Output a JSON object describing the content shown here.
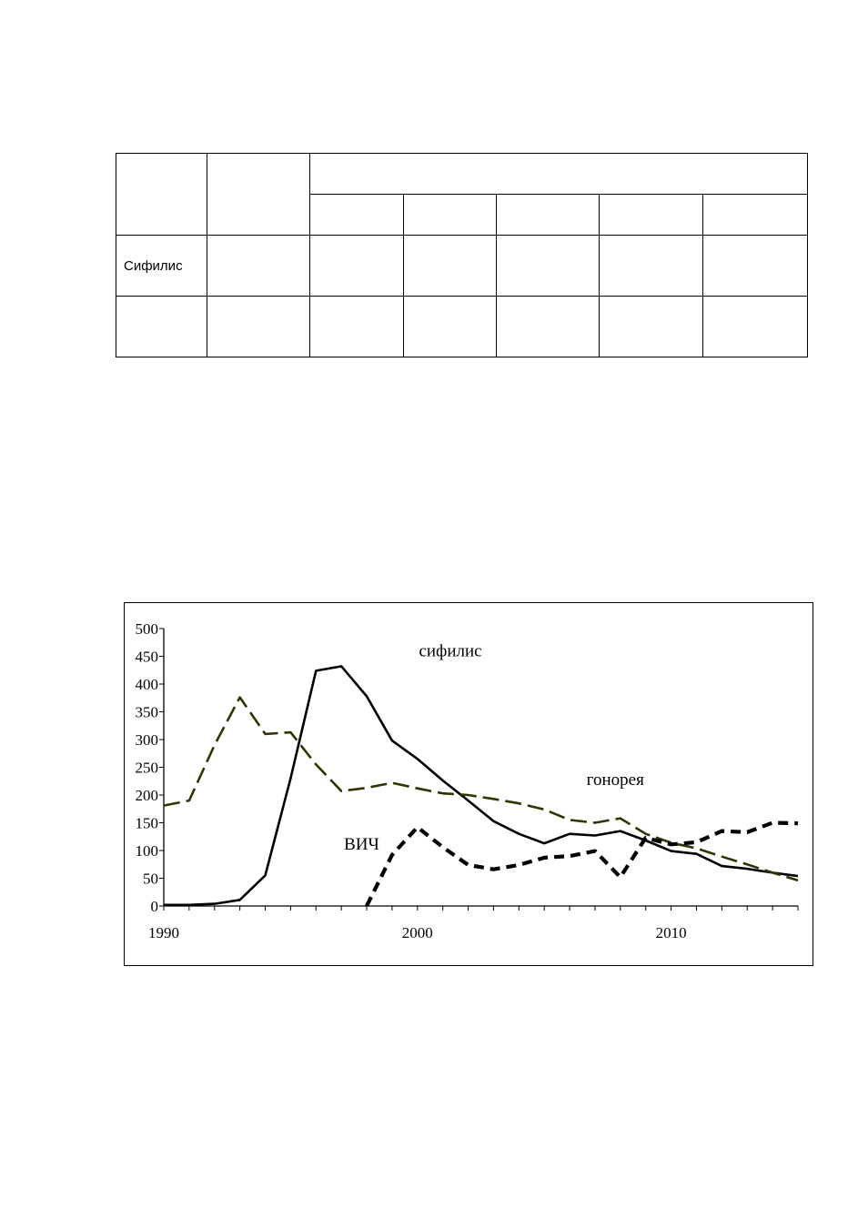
{
  "table": {
    "rows": [
      [
        "",
        "",
        "",
        "",
        "",
        "",
        ""
      ],
      [
        "Сифилис",
        "",
        "",
        "",
        "",
        "",
        ""
      ],
      [
        "",
        "",
        "",
        "",
        "",
        "",
        ""
      ]
    ]
  },
  "chart_data": {
    "type": "line",
    "xlim": [
      1990,
      2015
    ],
    "ylim": [
      0,
      500
    ],
    "yticks": [
      "0",
      "50",
      "100",
      "150",
      "200",
      "250",
      "300",
      "350",
      "400",
      "450",
      "500"
    ],
    "xticks": [
      "1990",
      "2000",
      "2010"
    ],
    "grid": false,
    "legend": "none",
    "annotations": [
      "сифилис",
      "гонорея",
      "ВИЧ"
    ],
    "series": [
      {
        "name": "сифилис",
        "style": "solid",
        "color": "#000000",
        "x": [
          1990,
          1991,
          1992,
          1993,
          1994,
          1995,
          1996,
          1997,
          1998,
          1999,
          2000,
          2001,
          2002,
          2003,
          2004,
          2005,
          2006,
          2007,
          2008,
          2009,
          2010,
          2011,
          2012,
          2013,
          2014,
          2015
        ],
        "values": [
          2,
          2,
          4,
          11,
          55,
          230,
          424,
          432,
          378,
          298,
          265,
          226,
          190,
          153,
          130,
          113,
          130,
          127,
          135,
          118,
          99,
          94,
          72,
          67,
          60,
          54
        ]
      },
      {
        "name": "гонорея",
        "style": "dashed",
        "color": "#333300",
        "x": [
          1990,
          1991,
          1992,
          1993,
          1994,
          1995,
          1996,
          1997,
          1998,
          1999,
          2000,
          2001,
          2002,
          2003,
          2004,
          2005,
          2006,
          2007,
          2008,
          2009,
          2010,
          2011,
          2012,
          2013,
          2014,
          2015
        ],
        "values": [
          181,
          190,
          290,
          376,
          310,
          313,
          255,
          207,
          213,
          222,
          212,
          203,
          200,
          193,
          185,
          174,
          155,
          150,
          158,
          130,
          114,
          104,
          89,
          75,
          60,
          46
        ]
      },
      {
        "name": "ВИЧ",
        "style": "heavy-dashed",
        "color": "#000000",
        "x": [
          1998,
          1999,
          2000,
          2001,
          2002,
          2003,
          2004,
          2005,
          2006,
          2007,
          2008,
          2009,
          2010,
          2011,
          2012,
          2013,
          2014,
          2015
        ],
        "values": [
          0,
          92,
          142,
          106,
          74,
          66,
          74,
          87,
          90,
          99,
          52,
          123,
          111,
          115,
          135,
          133,
          150,
          149
        ]
      }
    ]
  }
}
